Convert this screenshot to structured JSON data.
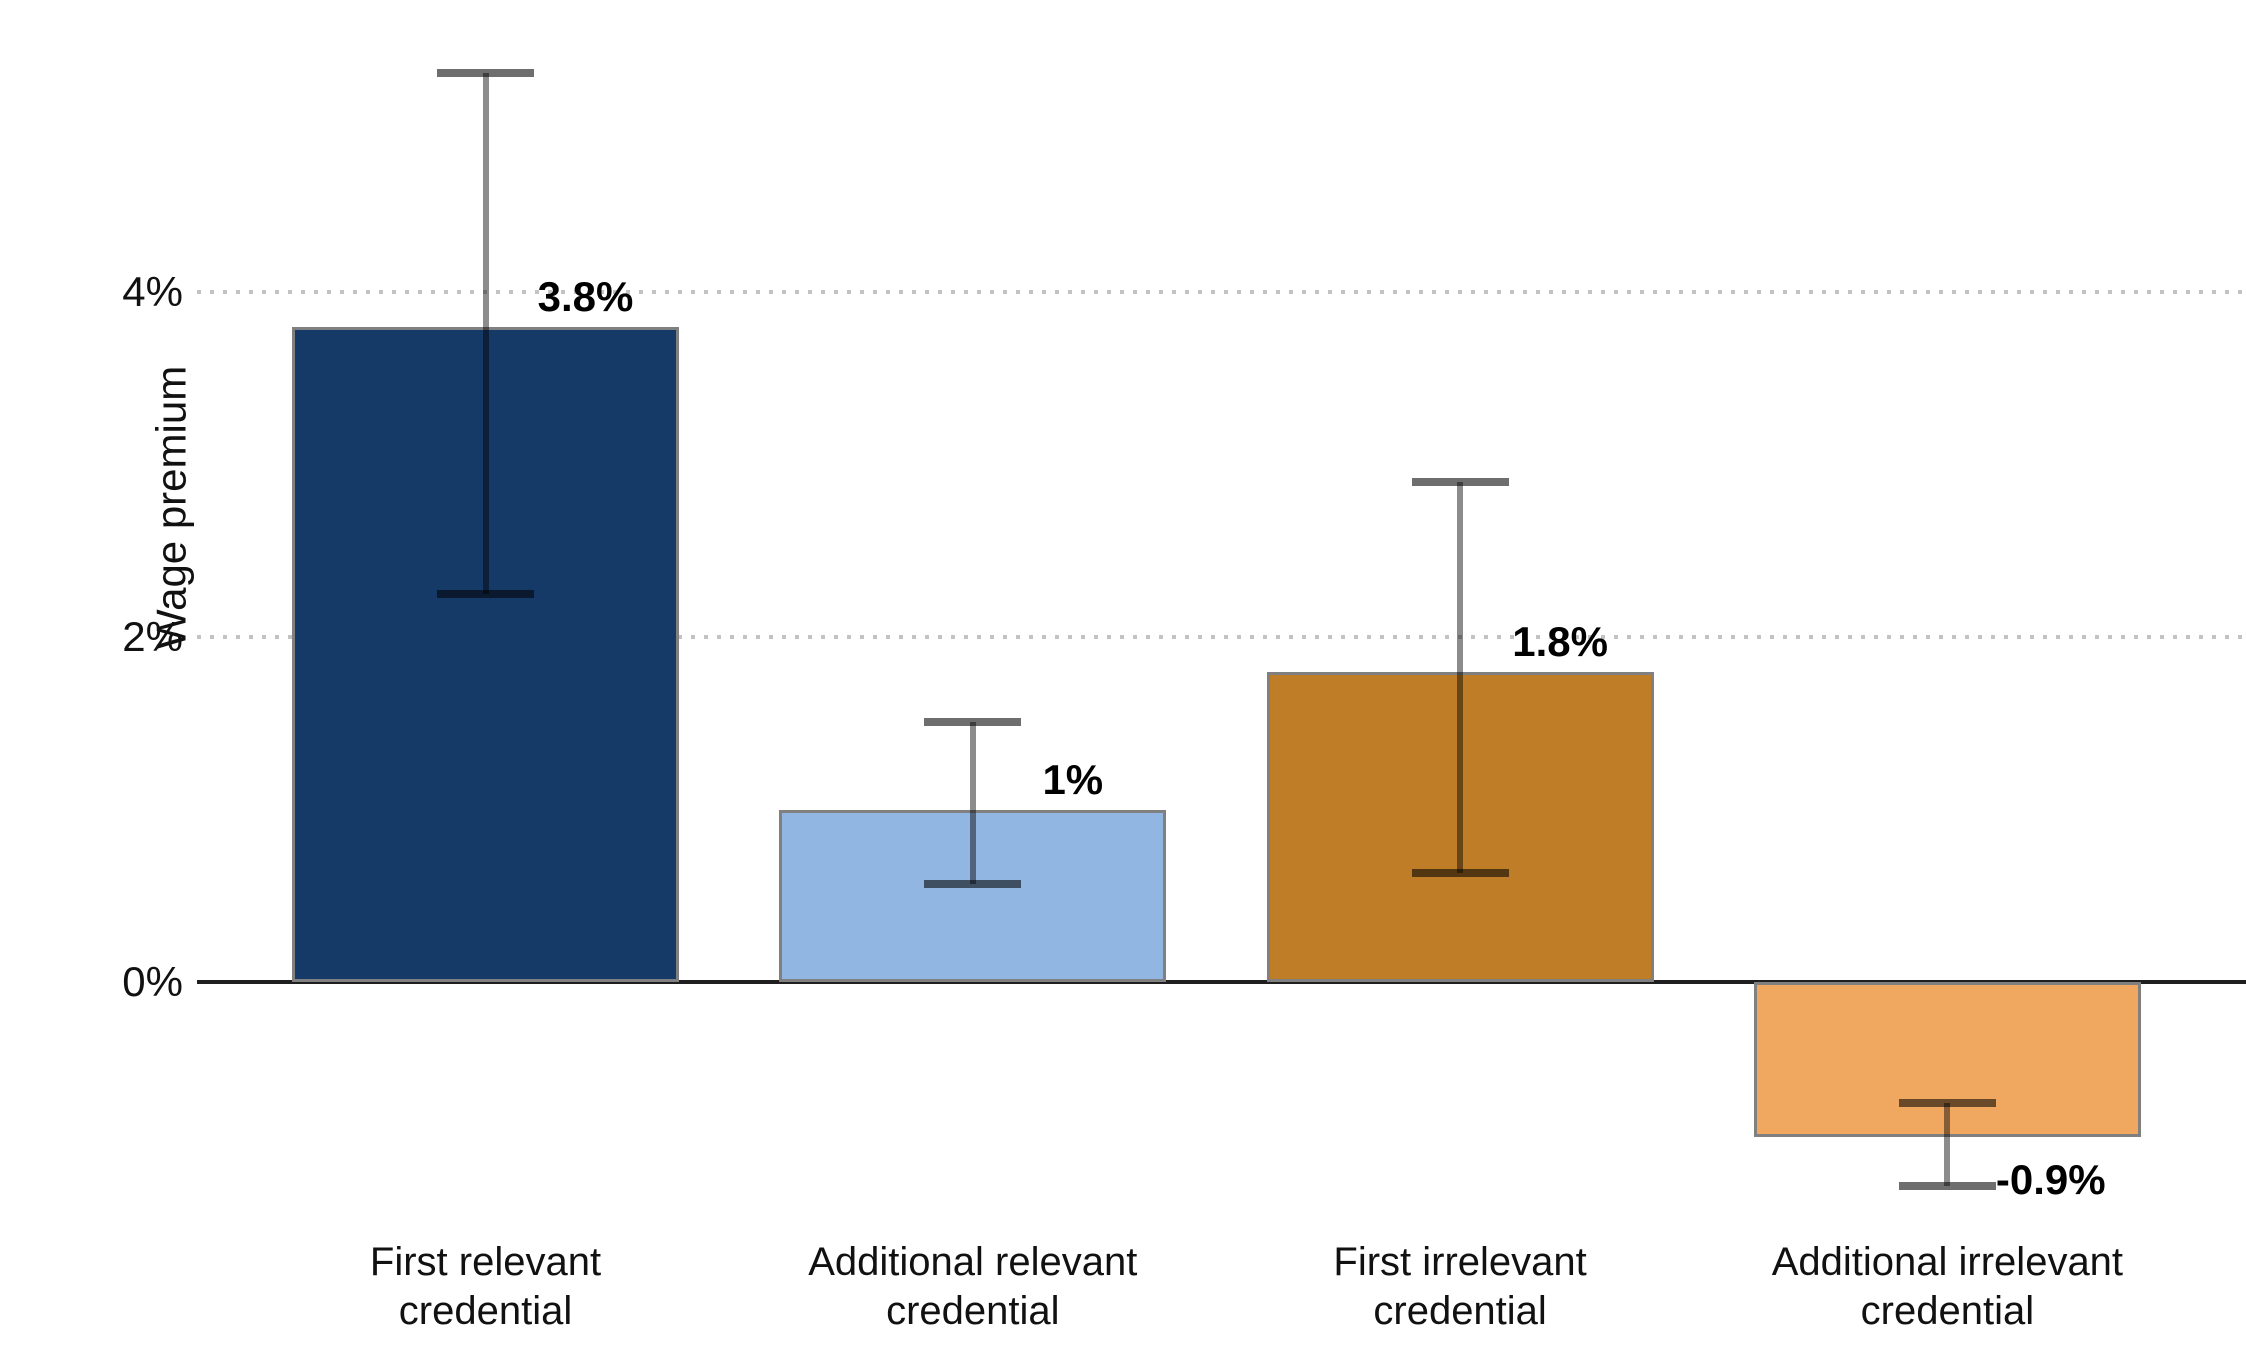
{
  "chart_data": {
    "type": "bar",
    "title": "",
    "ylabel": "Wage premium",
    "categories": [
      "First relevant credential",
      "Additional relevant credential",
      "First irrelevant credential",
      "Additional irrelevant credential"
    ],
    "category_lines": [
      [
        "First relevant",
        "credential"
      ],
      [
        "Additional relevant",
        "credential"
      ],
      [
        "First irrelevant",
        "credential"
      ],
      [
        "Additional irrelevant",
        "credential"
      ]
    ],
    "values": [
      3.8,
      1.0,
      1.8,
      -0.9
    ],
    "value_labels": [
      "3.8%",
      "1%",
      "1.8%",
      "-0.9%"
    ],
    "error_low": [
      2.25,
      0.57,
      0.63,
      -1.18
    ],
    "error_high": [
      5.27,
      1.51,
      2.9,
      -0.7
    ],
    "bar_colors": [
      "#163a68",
      "#92b6e2",
      "#c07d28",
      "#f0a860"
    ],
    "bar_border_color": "#808080",
    "errorbar_line_color": "#8c8c8c",
    "errorbar_cap_color": "#6e6e6e",
    "axis_line_color": "#1f1f1f",
    "gridline_color": "#c3c3c3",
    "text_color": "#111111",
    "yticks": [
      {
        "value": 0,
        "label": "0%"
      },
      {
        "value": 2,
        "label": "2%"
      },
      {
        "value": 4,
        "label": "4%"
      }
    ],
    "ylim": [
      -1.5,
      5.7
    ],
    "grid": "horizontal-dotted-above-zero",
    "legend": "none"
  }
}
